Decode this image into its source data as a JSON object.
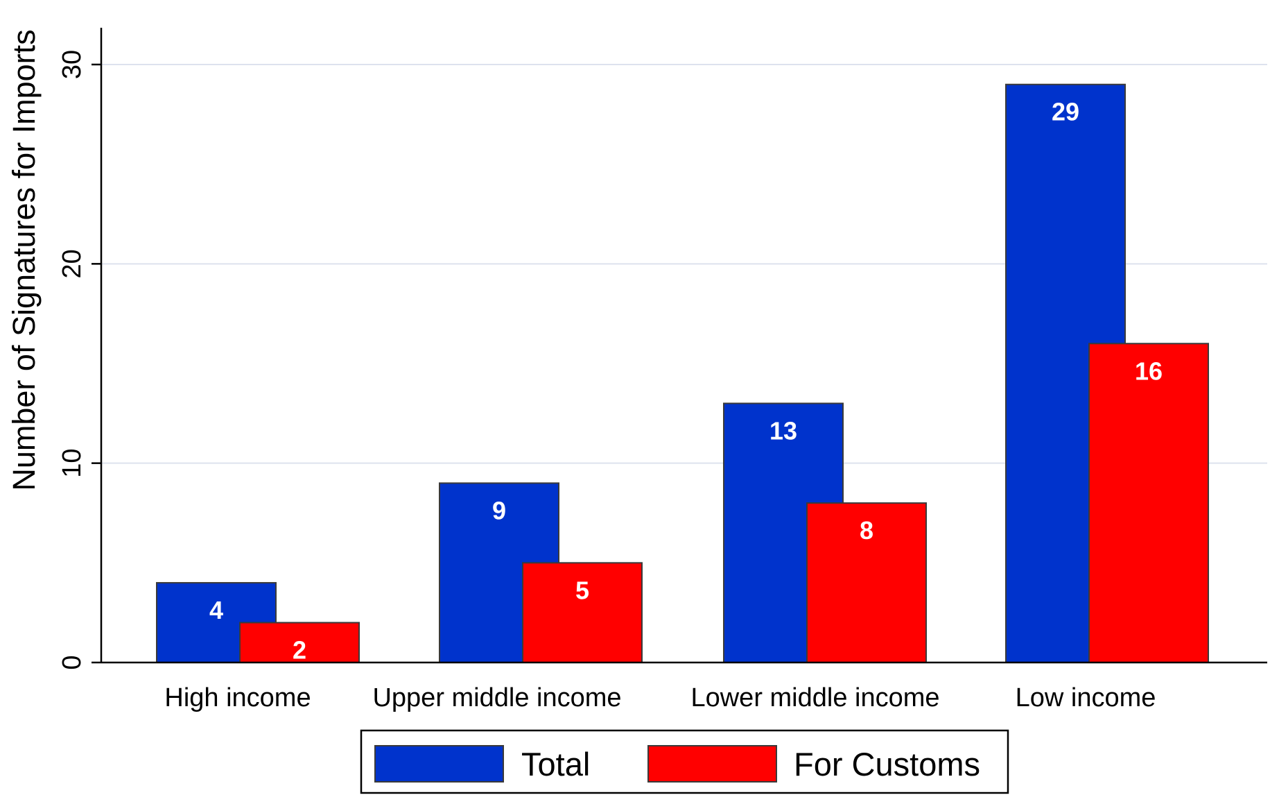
{
  "chart_data": {
    "type": "bar",
    "categories": [
      "High income",
      "Upper middle income",
      "Lower middle income",
      "Low income"
    ],
    "series": [
      {
        "name": "Total",
        "values": [
          4,
          9,
          13,
          29
        ],
        "labels": [
          "4",
          "9",
          "13",
          "29"
        ],
        "color": "#0033cc"
      },
      {
        "name": "For Customs",
        "values": [
          2,
          5,
          8,
          16
        ],
        "labels": [
          "2",
          "5",
          "8",
          "16"
        ],
        "color": "#ff0000"
      }
    ],
    "ylabel": "Number of Signatures for Imports",
    "xlabel": "",
    "ylim": [
      0,
      30
    ],
    "yticks": [
      0,
      10,
      20,
      30
    ],
    "ytick_labels": [
      "0",
      "10",
      "20",
      "30"
    ],
    "grid": true,
    "legend_position": "bottom"
  }
}
